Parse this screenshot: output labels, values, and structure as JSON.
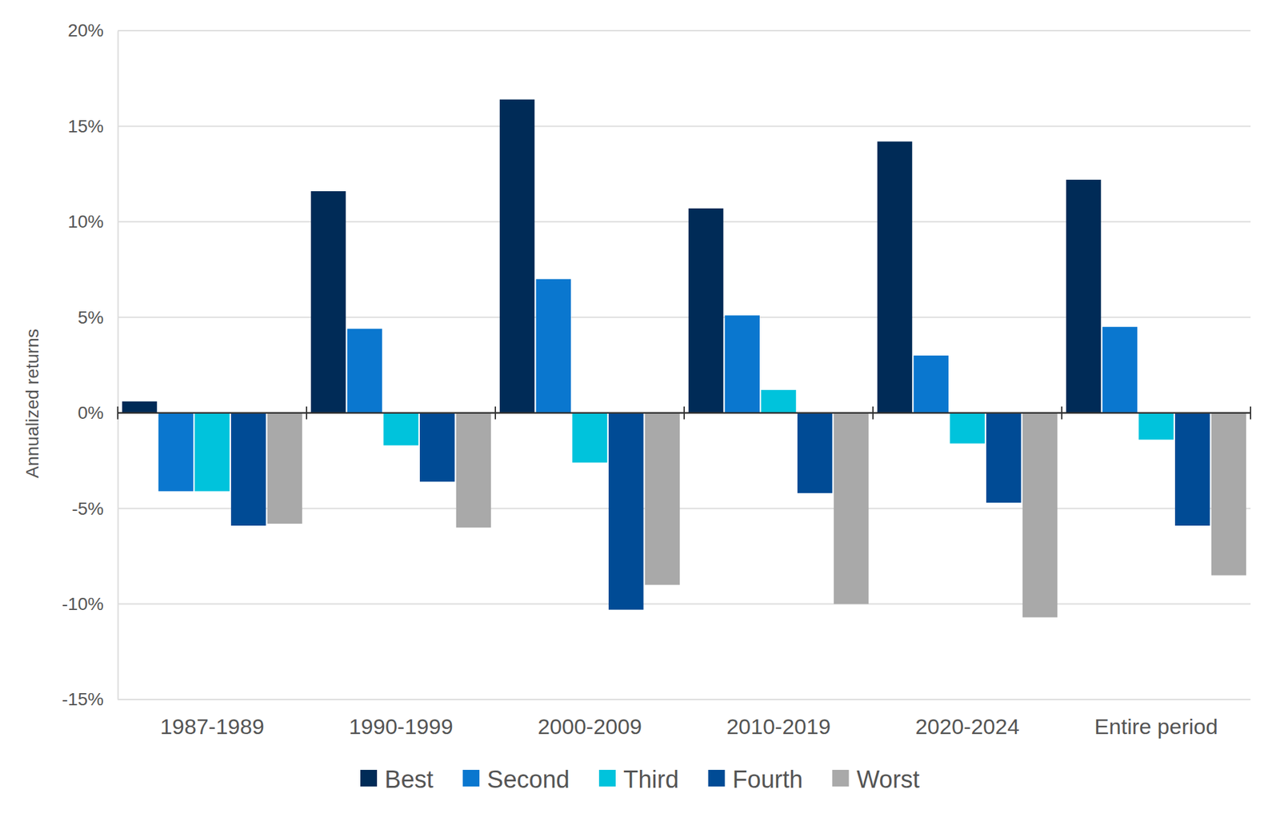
{
  "chart_data": {
    "type": "bar",
    "y_label": "Annualized returns",
    "categories": [
      "1987-1989",
      "1990-1999",
      "2000-2009",
      "2010-2019",
      "2020-2024",
      "Entire period"
    ],
    "series": [
      {
        "name": "Best",
        "color": "#002b57",
        "values": [
          0.6,
          11.6,
          16.4,
          10.7,
          14.2,
          12.2
        ]
      },
      {
        "name": "Second",
        "color": "#0a77cf",
        "values": [
          -4.1,
          4.4,
          7.0,
          5.1,
          3.0,
          4.5
        ]
      },
      {
        "name": "Third",
        "color": "#00c3dc",
        "values": [
          -4.1,
          -1.7,
          -2.6,
          1.2,
          -1.6,
          -1.4
        ]
      },
      {
        "name": "Fourth",
        "color": "#004b95",
        "values": [
          -5.9,
          -3.6,
          -10.3,
          -4.2,
          -4.7,
          -5.9
        ]
      },
      {
        "name": "Worst",
        "color": "#a9a9a9",
        "values": [
          -5.8,
          -6.0,
          -9.0,
          -10.0,
          -10.7,
          -8.5
        ]
      }
    ],
    "ylim": [
      -15,
      20
    ],
    "yticks": [
      {
        "value": -15,
        "label": "-15%"
      },
      {
        "value": -10,
        "label": "-10%"
      },
      {
        "value": -5,
        "label": "-5%"
      },
      {
        "value": 0,
        "label": "0%"
      },
      {
        "value": 5,
        "label": "5%"
      },
      {
        "value": 10,
        "label": "10%"
      },
      {
        "value": 15,
        "label": "15%"
      },
      {
        "value": 20,
        "label": "20%"
      }
    ],
    "grid": true,
    "legend": "bottom"
  }
}
